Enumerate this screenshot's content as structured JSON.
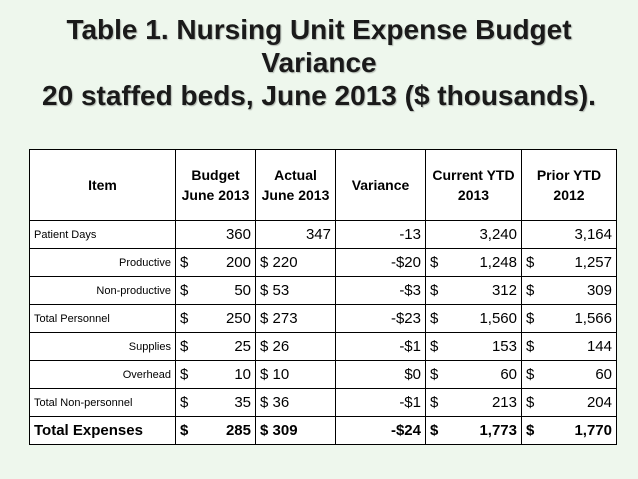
{
  "title": {
    "line1": "Table 1.  Nursing Unit Expense Budget",
    "line2": "Variance",
    "line3": "20 staffed beds, June 2013 ($ thousands)."
  },
  "table": {
    "headers": [
      "Item",
      "Budget June 2013",
      "Actual June 2013",
      "Variance",
      "Current YTD 2013",
      "Prior YTD 2012"
    ],
    "rows": [
      {
        "item": "Patient Days",
        "budget_sym": "",
        "budget": "360",
        "actual_sym": "",
        "actual": "347",
        "variance": "-13",
        "current_sym": "",
        "current": "3,240",
        "prior_sym": "",
        "prior": "3,164"
      },
      {
        "item": "Productive",
        "budget_sym": "$",
        "budget": "200",
        "actual_sym": "$",
        "actual": "220",
        "variance": "-$20",
        "current_sym": "$",
        "current": "1,248",
        "prior_sym": "$",
        "prior": "1,257"
      },
      {
        "item": "Non-productive",
        "budget_sym": "$",
        "budget": "50",
        "actual_sym": "$",
        "actual": "53",
        "variance": "-$3",
        "current_sym": "$",
        "current": "312",
        "prior_sym": "$",
        "prior": "309"
      },
      {
        "item": "Total Personnel",
        "budget_sym": "$",
        "budget": "250",
        "actual_sym": "$",
        "actual": "273",
        "variance": "-$23",
        "current_sym": "$",
        "current": "1,560",
        "prior_sym": "$",
        "prior": "1,566"
      },
      {
        "item": "Supplies",
        "budget_sym": "$",
        "budget": "25",
        "actual_sym": "$",
        "actual": "26",
        "variance": "-$1",
        "current_sym": "$",
        "current": "153",
        "prior_sym": "$",
        "prior": "144"
      },
      {
        "item": "Overhead",
        "budget_sym": "$",
        "budget": "10",
        "actual_sym": "$",
        "actual": "10",
        "variance": "$0",
        "current_sym": "$",
        "current": "60",
        "prior_sym": "$",
        "prior": "60"
      },
      {
        "item": "Total Non-personnel",
        "budget_sym": "$",
        "budget": "35",
        "actual_sym": "$",
        "actual": "36",
        "variance": "-$1",
        "current_sym": "$",
        "current": "213",
        "prior_sym": "$",
        "prior": "204"
      },
      {
        "item": "Total Expenses",
        "budget_sym": "$",
        "budget": "285",
        "actual_sym": "$",
        "actual": "309",
        "variance": "-$24",
        "current_sym": "$",
        "current": "1,773",
        "prior_sym": "$",
        "prior": "1,770"
      }
    ]
  }
}
